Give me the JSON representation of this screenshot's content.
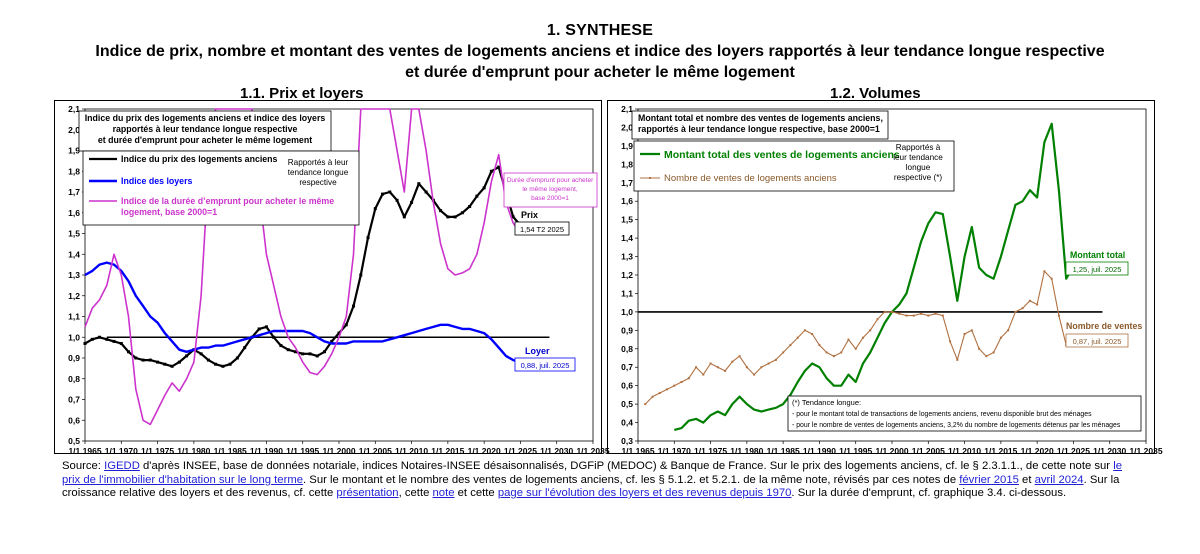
{
  "header": {
    "section": "1.  SYNTHESE",
    "subtitle_line1": "Indice de prix, nombre et montant des ventes de logements anciens et indice des loyers rapportés à leur tendance longue respective",
    "subtitle_line2": "et durée d'emprunt pour acheter le même logement"
  },
  "chart_data": [
    {
      "type": "line",
      "panel_title": "1.1.    Prix et loyers",
      "inner_title": [
        "Indice du prix des logements anciens et indice des loyers",
        "rapportés à leur tendance longue respective",
        "et durée d'emprunt pour acheter le même logement"
      ],
      "xlim": [
        1965,
        2035
      ],
      "ylim": [
        0.5,
        2.1
      ],
      "x_ticks": [
        "1/1 1965",
        "1/1 1970",
        "1/1 1975",
        "1/1 1980",
        "1/1 1985",
        "1/1 1990",
        "1/1 1995",
        "1/1 2000",
        "1/1 2005",
        "1/1 2010",
        "1/1 2015",
        "1/1 2020",
        "1/1 2025",
        "1/1 2030",
        "1/1 2035"
      ],
      "y_ticks": [
        "0,5",
        "0,6",
        "0,7",
        "0,8",
        "0,9",
        "1,0",
        "1,1",
        "1,2",
        "1,3",
        "1,4",
        "1,5",
        "1,6",
        "1,7",
        "1,8",
        "1,9",
        "2,0",
        "2,1"
      ],
      "reference_line": 1.0,
      "legend": {
        "prix": "Indice du prix des logements anciens",
        "loyers": "Indice des loyers",
        "duree": "Indice de la durée d'emprunt pour acheter le même logement, base 2000=1",
        "rapportes": [
          "Rapportés à leur",
          "tendance longue",
          "respective"
        ]
      },
      "annotations": {
        "duree_note": [
          "Durée d'emprunt pour acheter",
          "le même logement,",
          "base 2000=1"
        ],
        "prix_label": "Prix",
        "prix_value": "1,54 T2 2025",
        "loyer_label": "Loyer",
        "loyer_value": "0,88, juil. 2025"
      },
      "series": [
        {
          "name": "Indice du prix des logements anciens",
          "color": "#000000",
          "x": [
            1965,
            1966,
            1967,
            1968,
            1969,
            1970,
            1971,
            1972,
            1973,
            1974,
            1975,
            1976,
            1977,
            1978,
            1979,
            1980,
            1981,
            1982,
            1983,
            1984,
            1985,
            1986,
            1987,
            1988,
            1989,
            1990,
            1991,
            1992,
            1993,
            1994,
            1995,
            1996,
            1997,
            1998,
            1999,
            2000,
            2001,
            2002,
            2003,
            2004,
            2005,
            2006,
            2007,
            2008,
            2009,
            2010,
            2011,
            2012,
            2013,
            2014,
            2015,
            2016,
            2017,
            2018,
            2019,
            2020,
            2021,
            2022,
            2023,
            2024,
            2025
          ],
          "values": [
            0.97,
            0.99,
            1.0,
            0.99,
            0.98,
            0.97,
            0.93,
            0.9,
            0.89,
            0.89,
            0.88,
            0.87,
            0.86,
            0.88,
            0.91,
            0.94,
            0.92,
            0.89,
            0.87,
            0.86,
            0.87,
            0.9,
            0.95,
            1.0,
            1.04,
            1.05,
            1.0,
            0.96,
            0.94,
            0.93,
            0.92,
            0.92,
            0.91,
            0.93,
            0.98,
            1.02,
            1.06,
            1.15,
            1.3,
            1.48,
            1.62,
            1.69,
            1.7,
            1.66,
            1.58,
            1.65,
            1.74,
            1.7,
            1.66,
            1.61,
            1.58,
            1.58,
            1.6,
            1.63,
            1.68,
            1.72,
            1.8,
            1.82,
            1.7,
            1.58,
            1.54
          ]
        },
        {
          "name": "Indice des loyers",
          "color": "#0000ff",
          "x": [
            1965,
            1966,
            1967,
            1968,
            1969,
            1970,
            1971,
            1972,
            1973,
            1974,
            1975,
            1976,
            1977,
            1978,
            1979,
            1980,
            1981,
            1982,
            1983,
            1984,
            1985,
            1986,
            1987,
            1988,
            1989,
            1990,
            1991,
            1992,
            1993,
            1994,
            1995,
            1996,
            1997,
            1998,
            1999,
            2000,
            2001,
            2002,
            2003,
            2004,
            2005,
            2006,
            2007,
            2008,
            2009,
            2010,
            2011,
            2012,
            2013,
            2014,
            2015,
            2016,
            2017,
            2018,
            2019,
            2020,
            2021,
            2022,
            2023,
            2024,
            2025
          ],
          "values": [
            1.3,
            1.32,
            1.35,
            1.36,
            1.35,
            1.32,
            1.27,
            1.2,
            1.15,
            1.1,
            1.07,
            1.02,
            0.98,
            0.94,
            0.93,
            0.94,
            0.95,
            0.95,
            0.96,
            0.96,
            0.97,
            0.98,
            0.99,
            1.0,
            1.01,
            1.02,
            1.03,
            1.03,
            1.03,
            1.03,
            1.03,
            1.02,
            1.0,
            0.98,
            0.97,
            0.97,
            0.97,
            0.98,
            0.98,
            0.98,
            0.98,
            0.98,
            0.99,
            1.0,
            1.01,
            1.02,
            1.03,
            1.04,
            1.05,
            1.06,
            1.06,
            1.05,
            1.04,
            1.04,
            1.03,
            1.02,
            0.99,
            0.95,
            0.91,
            0.89,
            0.88
          ]
        },
        {
          "name": "Indice de la durée d'emprunt pour acheter le même logement, base 2000=1",
          "color": "#cc33cc",
          "x": [
            1965,
            1966,
            1967,
            1968,
            1969,
            1970,
            1971,
            1972,
            1973,
            1974,
            1975,
            1976,
            1977,
            1978,
            1979,
            1980,
            1981,
            1982,
            1983,
            1984,
            1985,
            1986,
            1987,
            1988,
            1989,
            1990,
            1991,
            1992,
            1993,
            1994,
            1995,
            1996,
            1997,
            1998,
            1999,
            2000,
            2001,
            2002,
            2003,
            2004,
            2005,
            2006,
            2007,
            2008,
            2009,
            2010,
            2011,
            2012,
            2013,
            2014,
            2015,
            2016,
            2017,
            2018,
            2019,
            2020,
            2021,
            2022,
            2023,
            2024,
            2025
          ],
          "values": [
            1.05,
            1.14,
            1.18,
            1.25,
            1.4,
            1.3,
            1.1,
            0.75,
            0.6,
            0.58,
            0.65,
            0.72,
            0.78,
            0.74,
            0.8,
            0.88,
            1.2,
            1.8,
            2.1,
            2.1,
            2.1,
            2.1,
            2.1,
            2.1,
            1.7,
            1.4,
            1.25,
            1.1,
            1.0,
            0.95,
            0.88,
            0.83,
            0.82,
            0.86,
            0.92,
            1.0,
            1.1,
            1.4,
            2.1,
            2.1,
            2.1,
            2.1,
            2.1,
            1.9,
            1.7,
            2.1,
            2.1,
            1.9,
            1.65,
            1.45,
            1.33,
            1.3,
            1.31,
            1.33,
            1.4,
            1.55,
            1.75,
            1.88,
            1.65,
            1.55,
            1.5
          ]
        }
      ]
    },
    {
      "type": "line",
      "panel_title": "1.2. Volumes",
      "inner_title": [
        "Montant total et nombre des ventes de logements anciens,",
        "rapportés à leur tendance longue respective, base 2000=1"
      ],
      "xlim": [
        1965,
        2035
      ],
      "ylim": [
        0.3,
        2.1
      ],
      "x_ticks": [
        "1/1 1965",
        "1/1 1970",
        "1/1 1975",
        "1/1 1980",
        "1/1 1985",
        "1/1 1990",
        "1/1 1995",
        "1/1 2000",
        "1/1 2005",
        "1/1 2010",
        "1/1 2015",
        "1/1 2020",
        "1/1 2025",
        "1/1 2030",
        "1/1 2035"
      ],
      "y_ticks": [
        "0,3",
        "0,4",
        "0,5",
        "0,6",
        "0,7",
        "0,8",
        "0,9",
        "1,0",
        "1,1",
        "1,2",
        "1,3",
        "1,4",
        "1,5",
        "1,6",
        "1,7",
        "1,8",
        "1,9",
        "2,0",
        "2,1"
      ],
      "reference_line": 1.0,
      "legend": {
        "montant": "Montant total des ventes de logements anciens",
        "nombre": "Nombre de ventes de logements anciens",
        "rapportes": [
          "Rapportés à",
          "leur tendance",
          "longue",
          "respective (*)"
        ]
      },
      "annotations": {
        "montant_label": "Montant total",
        "montant_value": "1,25, juil. 2025",
        "nombre_label": "Nombre de ventes",
        "nombre_value": "0,87, juil. 2025",
        "tendance_title": "(*) Tendance longue:",
        "tendance_line1": "- pour le montant total de transactions de logements anciens, revenu disponible brut des ménages",
        "tendance_line2": "- pour le nombre de ventes de logements anciens, 3,2% du nombre de logements détenus par les ménages"
      },
      "series": [
        {
          "name": "Montant total des ventes de logements anciens",
          "color": "#008000",
          "x": [
            1970,
            1971,
            1972,
            1973,
            1974,
            1975,
            1976,
            1977,
            1978,
            1979,
            1980,
            1981,
            1982,
            1983,
            1984,
            1985,
            1986,
            1987,
            1988,
            1989,
            1990,
            1991,
            1992,
            1993,
            1994,
            1995,
            1996,
            1997,
            1998,
            1999,
            2000,
            2001,
            2002,
            2003,
            2004,
            2005,
            2006,
            2007,
            2008,
            2009,
            2010,
            2011,
            2012,
            2013,
            2014,
            2015,
            2016,
            2017,
            2018,
            2019,
            2020,
            2021,
            2022,
            2023,
            2024,
            2025
          ],
          "values": [
            0.36,
            0.37,
            0.41,
            0.42,
            0.4,
            0.44,
            0.46,
            0.44,
            0.5,
            0.54,
            0.5,
            0.47,
            0.46,
            0.47,
            0.48,
            0.5,
            0.55,
            0.62,
            0.68,
            0.72,
            0.7,
            0.64,
            0.6,
            0.6,
            0.66,
            0.62,
            0.72,
            0.78,
            0.86,
            0.94,
            1.0,
            1.04,
            1.1,
            1.24,
            1.38,
            1.48,
            1.54,
            1.53,
            1.3,
            1.06,
            1.3,
            1.46,
            1.24,
            1.2,
            1.18,
            1.3,
            1.44,
            1.58,
            1.6,
            1.66,
            1.62,
            1.92,
            2.02,
            1.66,
            1.18,
            1.25
          ]
        },
        {
          "name": "Nombre de ventes de logements anciens",
          "color": "#b07040",
          "x": [
            1966,
            1967,
            1968,
            1969,
            1970,
            1971,
            1972,
            1973,
            1974,
            1975,
            1976,
            1977,
            1978,
            1979,
            1980,
            1981,
            1982,
            1983,
            1984,
            1985,
            1986,
            1987,
            1988,
            1989,
            1990,
            1991,
            1992,
            1993,
            1994,
            1995,
            1996,
            1997,
            1998,
            1999,
            2000,
            2001,
            2002,
            2003,
            2004,
            2005,
            2006,
            2007,
            2008,
            2009,
            2010,
            2011,
            2012,
            2013,
            2014,
            2015,
            2016,
            2017,
            2018,
            2019,
            2020,
            2021,
            2022,
            2023,
            2024,
            2025
          ],
          "values": [
            0.5,
            0.54,
            0.56,
            0.58,
            0.6,
            0.62,
            0.64,
            0.7,
            0.66,
            0.72,
            0.7,
            0.68,
            0.73,
            0.76,
            0.7,
            0.66,
            0.7,
            0.72,
            0.74,
            0.78,
            0.82,
            0.86,
            0.9,
            0.88,
            0.82,
            0.78,
            0.76,
            0.78,
            0.85,
            0.8,
            0.86,
            0.9,
            0.96,
            1.0,
            1.0,
            0.99,
            0.98,
            0.98,
            0.99,
            0.98,
            0.99,
            0.98,
            0.84,
            0.74,
            0.88,
            0.9,
            0.8,
            0.76,
            0.78,
            0.86,
            0.9,
            1.0,
            1.02,
            1.06,
            1.04,
            1.22,
            1.18,
            0.98,
            0.82,
            0.87
          ]
        }
      ]
    }
  ],
  "source": {
    "p1": "Source: ",
    "l1": "IGEDD",
    "p2": " d'après INSEE, base de données notariale, indices Notaires-INSEE désaisonnalisés, DGFiP (MEDOC) & Banque de France.  Sur le prix des logements anciens, cf. le § 2.3.1.1., de cette note sur ",
    "l2": "le prix de l'immobilier d'habitation sur le long terme",
    "p3": ".  Sur le montant et le nombre des ventes de logements anciens, cf. les § 5.1.2. et 5.2.1. de la même note, révisés par ces notes de ",
    "l3": "février 2015",
    "p4": " et ",
    "l4": "avril 2024",
    "p5": ".  Sur la croissance relative des loyers et des revenus, cf. cette ",
    "l5": "présentation",
    "p6": ", cette ",
    "l6": "note",
    "p7": " et cette ",
    "l7": "page sur l'évolution des loyers et des revenus depuis 1970",
    "p8": ".  Sur la durée d'emprunt, cf. graphique 3.4. ci-dessous."
  }
}
